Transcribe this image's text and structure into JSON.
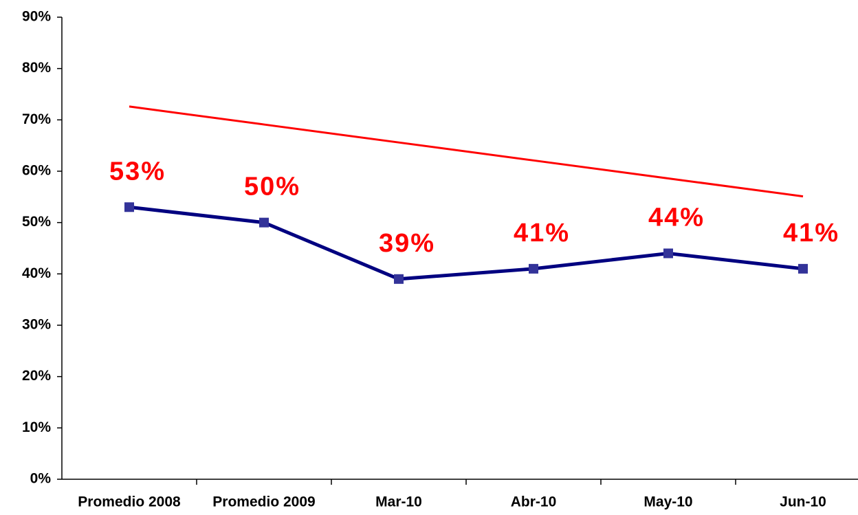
{
  "chart_data": {
    "type": "line",
    "categories": [
      "Promedio 2008",
      "Promedio 2009",
      "Mar-10",
      "Abr-10",
      "May-10",
      "Jun-10"
    ],
    "series": [
      {
        "color": "#000080",
        "marker_color": "#333399",
        "values": [
          53,
          50,
          39,
          41,
          44,
          41
        ],
        "value_labels": [
          "53%",
          "50%",
          "39%",
          "41%",
          "44%",
          "41%"
        ]
      },
      {
        "color": "#ff0000",
        "values": [
          72.6,
          69.1,
          65.6,
          62.1,
          58.6,
          55.1
        ]
      }
    ],
    "ylim": [
      0,
      90
    ],
    "yticks": [
      {
        "value": 0,
        "label": "0%"
      },
      {
        "value": 10,
        "label": "10%"
      },
      {
        "value": 20,
        "label": "20%"
      },
      {
        "value": 30,
        "label": "30%"
      },
      {
        "value": 40,
        "label": "40%"
      },
      {
        "value": 50,
        "label": "50%"
      },
      {
        "value": 60,
        "label": "60%"
      },
      {
        "value": 70,
        "label": "70%"
      },
      {
        "value": 80,
        "label": "80%"
      },
      {
        "value": 90,
        "label": "90%"
      }
    ],
    "grid": false
  }
}
